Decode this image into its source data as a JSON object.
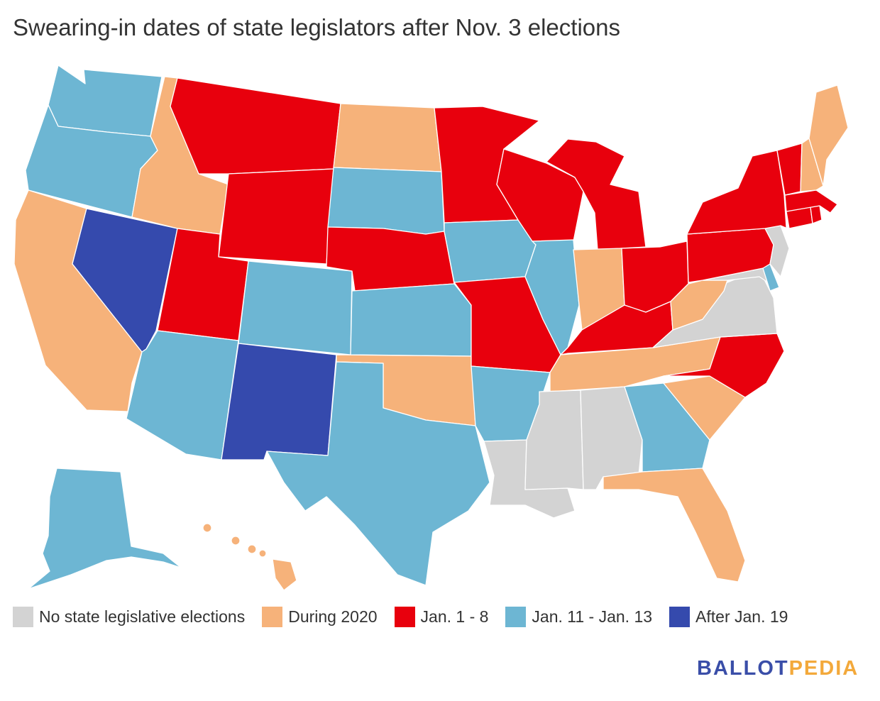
{
  "title": "Swearing-in dates of state legislators after Nov. 3 elections",
  "legend": [
    {
      "label": "No state legislative elections",
      "color": "#d3d3d3"
    },
    {
      "label": "During 2020",
      "color": "#f6b27a"
    },
    {
      "label": "Jan. 1 - 8",
      "color": "#e8000d"
    },
    {
      "label": "Jan. 11 - Jan. 13",
      "color": "#6db6d3"
    },
    {
      "label": "After Jan. 19",
      "color": "#354aad"
    }
  ],
  "brand": {
    "part1": "BALLOT",
    "part2": "PEDIA",
    "color1": "#3a4ea8",
    "color2": "#f3a93b"
  },
  "states": {
    "WA": "Jan. 11 - Jan. 13",
    "OR": "Jan. 11 - Jan. 13",
    "CA": "During 2020",
    "NV": "After Jan. 19",
    "ID": "During 2020",
    "MT": "Jan. 1 - 8",
    "WY": "Jan. 1 - 8",
    "UT": "Jan. 1 - 8",
    "AZ": "Jan. 11 - Jan. 13",
    "CO": "Jan. 11 - Jan. 13",
    "NM": "After Jan. 19",
    "ND": "During 2020",
    "SD": "Jan. 11 - Jan. 13",
    "NE": "Jan. 1 - 8",
    "KS": "Jan. 11 - Jan. 13",
    "OK": "During 2020",
    "TX": "Jan. 11 - Jan. 13",
    "MN": "Jan. 1 - 8",
    "IA": "Jan. 11 - Jan. 13",
    "MO": "Jan. 1 - 8",
    "AR": "Jan. 11 - Jan. 13",
    "LA": "No state legislative elections",
    "WI": "Jan. 1 - 8",
    "IL": "Jan. 11 - Jan. 13",
    "MI": "Jan. 1 - 8",
    "IN": "During 2020",
    "OH": "Jan. 1 - 8",
    "KY": "Jan. 1 - 8",
    "TN": "During 2020",
    "MS": "No state legislative elections",
    "AL": "No state legislative elections",
    "GA": "Jan. 11 - Jan. 13",
    "FL": "During 2020",
    "SC": "During 2020",
    "NC": "Jan. 1 - 8",
    "VA": "No state legislative elections",
    "WV": "During 2020",
    "PA": "Jan. 1 - 8",
    "NY": "Jan. 1 - 8",
    "VT": "Jan. 1 - 8",
    "NH": "During 2020",
    "ME": "During 2020",
    "MA": "Jan. 1 - 8",
    "RI": "Jan. 1 - 8",
    "CT": "Jan. 1 - 8",
    "NJ": "No state legislative elections",
    "DE": "Jan. 11 - Jan. 13",
    "MD": "No state legislative elections",
    "AK": "Jan. 11 - Jan. 13",
    "HI": "During 2020"
  }
}
